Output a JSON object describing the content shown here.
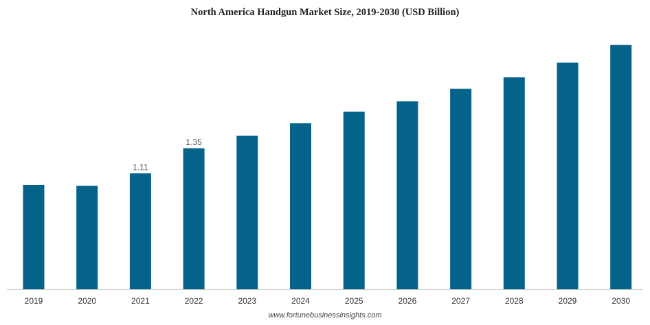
{
  "chart_data": {
    "type": "bar",
    "title": "North America Handgun Market Size, 2019-2030 (USD Billion)",
    "xlabel": "",
    "ylabel": "",
    "categories": [
      "2019",
      "2020",
      "2021",
      "2022",
      "2023",
      "2024",
      "2025",
      "2026",
      "2027",
      "2028",
      "2029",
      "2030"
    ],
    "values": [
      1.0,
      0.99,
      1.11,
      1.35,
      1.47,
      1.59,
      1.7,
      1.8,
      1.92,
      2.03,
      2.17,
      2.34
    ],
    "data_labels": [
      "",
      "",
      "1.11",
      "1.35",
      "",
      "",
      "",
      "",
      "",
      "",
      "",
      ""
    ],
    "ylim": [
      0,
      2.5
    ],
    "grid": false,
    "legend": "none",
    "bar_color": "#05638A"
  },
  "source": "www.fortunebusinessinsights.com"
}
